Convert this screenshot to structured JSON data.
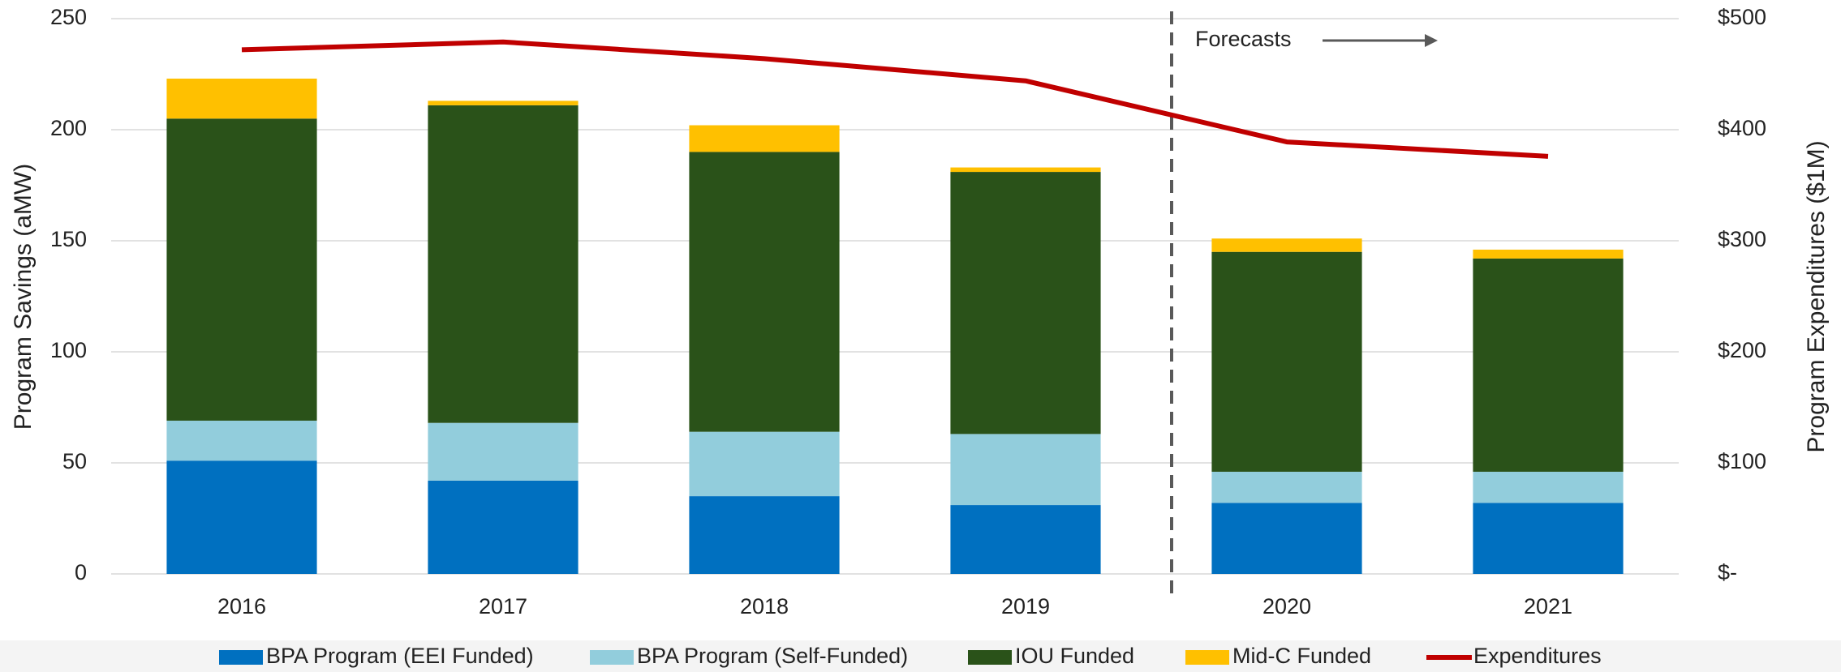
{
  "chart_data": {
    "type": "bar",
    "stacked": true,
    "categories": [
      "2016",
      "2017",
      "2018",
      "2019",
      "2020",
      "2021"
    ],
    "ylabel": "Program Savings (aMW)",
    "y2label": "Program Expenditures ($1M)",
    "ylim": [
      0,
      250
    ],
    "yticks": [
      0,
      50,
      100,
      150,
      200,
      250
    ],
    "y2lim": [
      0,
      500
    ],
    "y2ticks": [
      {
        "value": 0,
        "label": "$-"
      },
      {
        "value": 100,
        "label": "$100"
      },
      {
        "value": 200,
        "label": "$200"
      },
      {
        "value": 300,
        "label": "$300"
      },
      {
        "value": 400,
        "label": "$400"
      },
      {
        "value": 500,
        "label": "$500"
      }
    ],
    "grid": true,
    "legend": "bottom",
    "annotation": "Forecasts",
    "series": [
      {
        "name": "BPA Program (EEI Funded)",
        "color": "#0070c0",
        "values": [
          51,
          42,
          35,
          31,
          32,
          32
        ]
      },
      {
        "name": "BPA Program (Self-Funded)",
        "color": "#92cddc",
        "values": [
          18,
          26,
          29,
          32,
          14,
          14
        ]
      },
      {
        "name": "IOU Funded",
        "color": "#2a5219",
        "values": [
          136,
          143,
          126,
          118,
          99,
          96
        ]
      },
      {
        "name": "Mid-C Funded",
        "color": "#ffc000",
        "values": [
          18,
          2,
          12,
          2,
          6,
          4
        ]
      },
      {
        "name": "Expenditures",
        "color": "#c00000",
        "type": "line",
        "axis": "y2",
        "values": [
          472,
          479,
          464,
          444,
          389,
          376
        ]
      }
    ]
  }
}
